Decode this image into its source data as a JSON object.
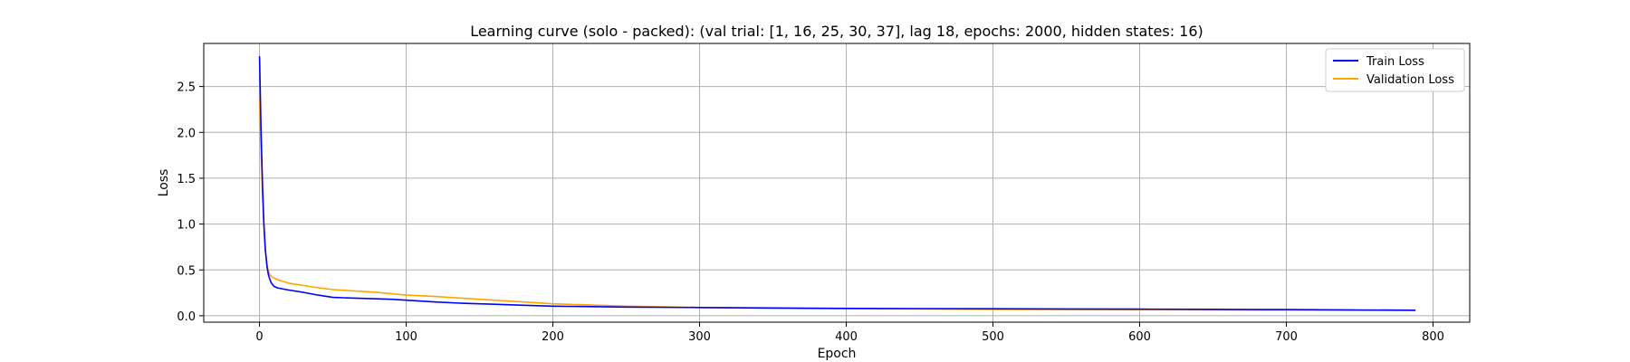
{
  "chart_data": {
    "type": "line",
    "title": "Learning curve (solo - packed): (val trial: [1, 16, 25, 30, 37], lag 18, epochs: 2000, hidden states: 16)",
    "xlabel": "Epoch",
    "ylabel": "Loss",
    "xlim": [
      -38,
      825
    ],
    "ylim": [
      -0.07,
      2.97
    ],
    "xticks": [
      0,
      100,
      200,
      300,
      400,
      500,
      600,
      700,
      800
    ],
    "yticks": [
      0.0,
      0.5,
      1.0,
      1.5,
      2.0,
      2.5
    ],
    "xtick_labels": [
      "0",
      "100",
      "200",
      "300",
      "400",
      "500",
      "600",
      "700",
      "800"
    ],
    "ytick_labels": [
      "0.0",
      "0.5",
      "1.0",
      "1.5",
      "2.0",
      "2.5"
    ],
    "grid": true,
    "legend_position": "top-right",
    "series": [
      {
        "name": "Train Loss",
        "color": "#0000ff",
        "x": [
          0,
          1,
          2,
          3,
          4,
          5,
          6,
          7,
          8,
          9,
          10,
          12,
          15,
          20,
          30,
          40,
          50,
          60,
          70,
          80,
          90,
          100,
          120,
          140,
          160,
          180,
          200,
          250,
          300,
          350,
          400,
          450,
          500,
          550,
          600,
          650,
          700,
          750,
          788
        ],
        "y": [
          2.83,
          2.05,
          1.45,
          1.0,
          0.72,
          0.55,
          0.45,
          0.4,
          0.36,
          0.34,
          0.32,
          0.305,
          0.295,
          0.28,
          0.255,
          0.225,
          0.2,
          0.195,
          0.19,
          0.185,
          0.18,
          0.17,
          0.15,
          0.135,
          0.125,
          0.115,
          0.105,
          0.095,
          0.09,
          0.085,
          0.08,
          0.078,
          0.076,
          0.074,
          0.072,
          0.07,
          0.067,
          0.063,
          0.06
        ]
      },
      {
        "name": "Validation Loss",
        "color": "#ffa500",
        "x": [
          0,
          1,
          2,
          3,
          4,
          5,
          6,
          7,
          8,
          9,
          10,
          12,
          15,
          20,
          30,
          40,
          50,
          60,
          70,
          80,
          90,
          100,
          120,
          140,
          160,
          180,
          200,
          250,
          300,
          350,
          400,
          450,
          500,
          550,
          600,
          650,
          700,
          750,
          788
        ],
        "y": [
          2.37,
          1.85,
          1.35,
          0.98,
          0.72,
          0.57,
          0.49,
          0.45,
          0.43,
          0.42,
          0.41,
          0.395,
          0.38,
          0.355,
          0.33,
          0.305,
          0.285,
          0.275,
          0.265,
          0.255,
          0.24,
          0.225,
          0.21,
          0.19,
          0.17,
          0.15,
          0.13,
          0.105,
          0.09,
          0.082,
          0.078,
          0.074,
          0.07,
          0.068,
          0.066,
          0.064,
          0.062,
          0.06,
          0.058
        ]
      }
    ]
  }
}
